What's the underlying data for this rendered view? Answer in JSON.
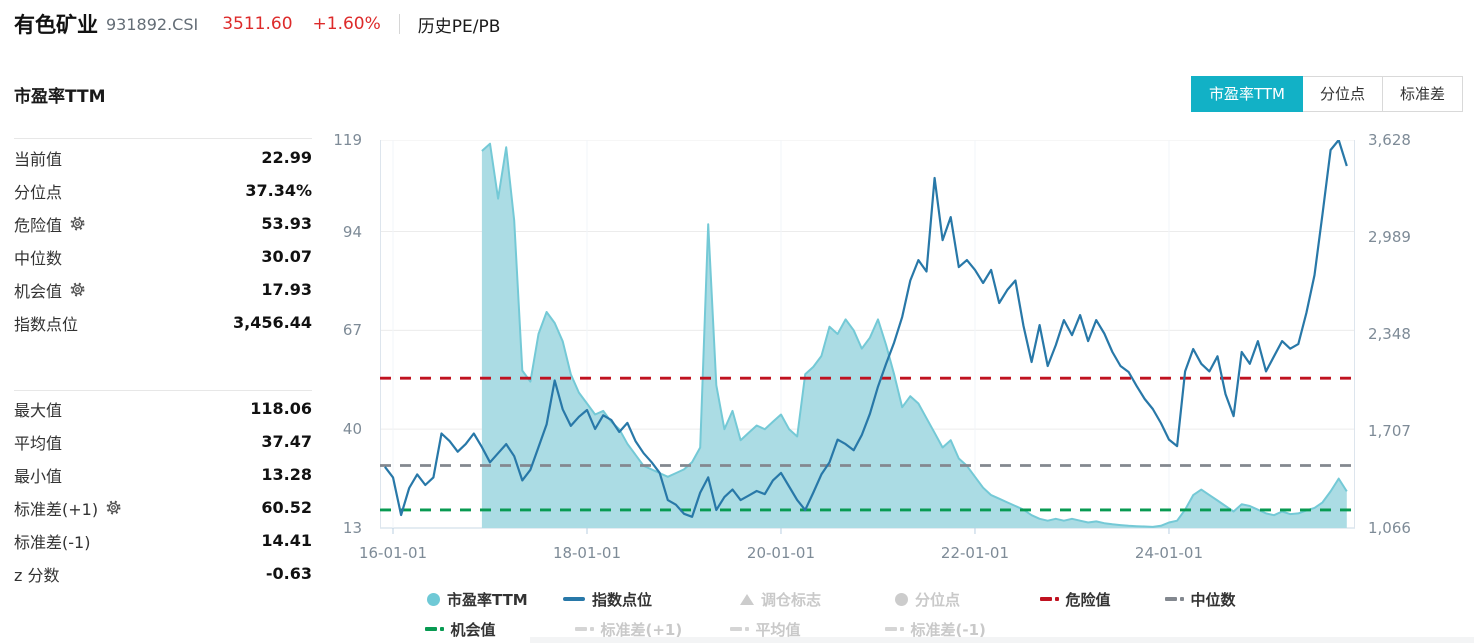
{
  "header": {
    "title": "有色矿业",
    "code": "931892.CSI",
    "price": "3511.60",
    "change": "+1.60%",
    "page_label": "历史PE/PB"
  },
  "section": {
    "title": "市盈率TTM"
  },
  "tabs": [
    {
      "label": "市盈率TTM",
      "active": true
    },
    {
      "label": "分位点",
      "active": false
    },
    {
      "label": "标准差",
      "active": false
    }
  ],
  "stats_top": [
    {
      "label": "当前值",
      "value": "22.99",
      "gear": false
    },
    {
      "label": "分位点",
      "value": "37.34%",
      "gear": false
    },
    {
      "label": "危险值",
      "value": "53.93",
      "gear": true
    },
    {
      "label": "中位数",
      "value": "30.07",
      "gear": false
    },
    {
      "label": "机会值",
      "value": "17.93",
      "gear": true
    },
    {
      "label": "指数点位",
      "value": "3,456.44",
      "gear": false
    }
  ],
  "stats_bottom": [
    {
      "label": "最大值",
      "value": "118.06",
      "gear": false
    },
    {
      "label": "平均值",
      "value": "37.47",
      "gear": false
    },
    {
      "label": "最小值",
      "value": "13.28",
      "gear": false
    },
    {
      "label": "标准差(+1)",
      "value": "60.52",
      "gear": true
    },
    {
      "label": "标准差(-1)",
      "value": "14.41",
      "gear": false
    },
    {
      "label": "z 分数",
      "value": "-0.63",
      "gear": false
    }
  ],
  "legend": {
    "row1": [
      {
        "label": "市盈率TTM",
        "type": "circle",
        "color": "#6fc9d6",
        "disabled": false
      },
      {
        "label": "指数点位",
        "type": "line",
        "color": "#2878a8",
        "disabled": false
      },
      {
        "label": "调仓标志",
        "type": "triangle",
        "color": "#cccccc",
        "disabled": true
      },
      {
        "label": "分位点",
        "type": "circle",
        "color": "#cccccc",
        "disabled": true
      },
      {
        "label": "危险值",
        "type": "dash",
        "color": "#c01220",
        "disabled": false
      },
      {
        "label": "中位数",
        "type": "dash",
        "color": "#83888f",
        "disabled": false
      }
    ],
    "row2": [
      {
        "label": "机会值",
        "type": "dash",
        "color": "#089a52",
        "disabled": false
      },
      {
        "label": "标准差(+1)",
        "type": "dash",
        "color": "#d5d5d5",
        "disabled": true
      },
      {
        "label": "平均值",
        "type": "dash",
        "color": "#d5d5d5",
        "disabled": true
      },
      {
        "label": "标准差(-1)",
        "type": "dash",
        "color": "#d5d5d5",
        "disabled": true
      }
    ]
  },
  "chart_data": {
    "type": "area+line",
    "title": "市盈率TTM 历史走势",
    "start_month": "2015-12",
    "months_per_point": 1,
    "pe_axis": {
      "min": 13,
      "max": 119,
      "tick_values": [
        119,
        94,
        67,
        40,
        13
      ],
      "tick_labels": [
        "119",
        "94",
        "67",
        "40",
        "13"
      ]
    },
    "index_axis": {
      "min": 1066,
      "max": 3628,
      "tick_values": [
        3628,
        2989,
        2348,
        1707,
        1066
      ],
      "tick_labels": [
        "3,628",
        "2,989",
        "2,348",
        "1,707",
        "1,066"
      ]
    },
    "x_ticks": [
      {
        "label": "16-01-01",
        "i": 1
      },
      {
        "label": "18-01-01",
        "i": 25
      },
      {
        "label": "20-01-01",
        "i": 49
      },
      {
        "label": "22-01-01",
        "i": 73
      },
      {
        "label": "24-01-01",
        "i": 97
      }
    ],
    "reference_lines": [
      {
        "name": "危险值",
        "value": 53.93,
        "color": "#c01220"
      },
      {
        "name": "中位数",
        "value": 30.07,
        "color": "#83888f"
      },
      {
        "name": "机会值",
        "value": 17.93,
        "color": "#089a52"
      }
    ],
    "series": [
      {
        "name": "市盈率TTM",
        "type": "area",
        "axis": "pe",
        "color_line": "#74c9d6",
        "color_fill": "#abdce4",
        "values": [
          null,
          null,
          null,
          null,
          null,
          null,
          null,
          null,
          null,
          null,
          null,
          null,
          116,
          118,
          103,
          117,
          97,
          56,
          53,
          66,
          72,
          69,
          64,
          55,
          50,
          47,
          44,
          45,
          42,
          40,
          36,
          33,
          30,
          29,
          28,
          27,
          28,
          29,
          31,
          35,
          96,
          52,
          40,
          45,
          37,
          39,
          41,
          40,
          42,
          44,
          40,
          38,
          55,
          57,
          60,
          68,
          66,
          70,
          67,
          62,
          65,
          70,
          63,
          55,
          46,
          49,
          47,
          43,
          39,
          35,
          37,
          32,
          30,
          27,
          24,
          22,
          21,
          20,
          19,
          18,
          16.5,
          15.5,
          15,
          15.5,
          15,
          15.5,
          15,
          14.5,
          14.8,
          14.3,
          14,
          13.8,
          13.6,
          13.5,
          13.4,
          13.3,
          13.6,
          14.5,
          15,
          18,
          22,
          23.5,
          22,
          20.5,
          19,
          17.5,
          19.5,
          19,
          18,
          17,
          16.5,
          17.5,
          16.8,
          17,
          17.8,
          18.5,
          20,
          23,
          26.5,
          22.99
        ]
      },
      {
        "name": "指数点位",
        "type": "line",
        "axis": "index",
        "color": "#2878a8",
        "values": [
          1470,
          1400,
          1152,
          1330,
          1420,
          1350,
          1400,
          1690,
          1640,
          1570,
          1620,
          1690,
          1600,
          1500,
          1560,
          1620,
          1540,
          1380,
          1450,
          1600,
          1750,
          2040,
          1850,
          1740,
          1800,
          1845,
          1720,
          1810,
          1780,
          1700,
          1760,
          1640,
          1560,
          1500,
          1430,
          1250,
          1220,
          1160,
          1140,
          1300,
          1400,
          1185,
          1270,
          1320,
          1250,
          1280,
          1310,
          1290,
          1380,
          1430,
          1340,
          1250,
          1185,
          1300,
          1420,
          1500,
          1650,
          1620,
          1580,
          1680,
          1820,
          2000,
          2150,
          2290,
          2460,
          2700,
          2835,
          2760,
          3377,
          2967,
          3119,
          2789,
          2835,
          2770,
          2684,
          2770,
          2552,
          2638,
          2700,
          2400,
          2162,
          2406,
          2136,
          2274,
          2439,
          2340,
          2472,
          2300,
          2439,
          2350,
          2228,
          2136,
          2096,
          2004,
          1918,
          1852,
          1759,
          1650,
          1607,
          2100,
          2248,
          2150,
          2100,
          2200,
          1950,
          1805,
          2228,
          2150,
          2300,
          2100,
          2200,
          2300,
          2250,
          2280,
          2486,
          2736,
          3139,
          3562,
          3628,
          3456
        ]
      }
    ],
    "grid": true,
    "legend_position": "bottom"
  },
  "colors": {
    "accent_teal": "#12b1c6",
    "price_red": "#dd2a2a",
    "pe_fill": "#abdce4",
    "pe_line": "#74c9d6",
    "index_line": "#2878a8",
    "danger_red": "#c01220",
    "median_gray": "#83888f",
    "opportunity_green": "#089a52"
  }
}
